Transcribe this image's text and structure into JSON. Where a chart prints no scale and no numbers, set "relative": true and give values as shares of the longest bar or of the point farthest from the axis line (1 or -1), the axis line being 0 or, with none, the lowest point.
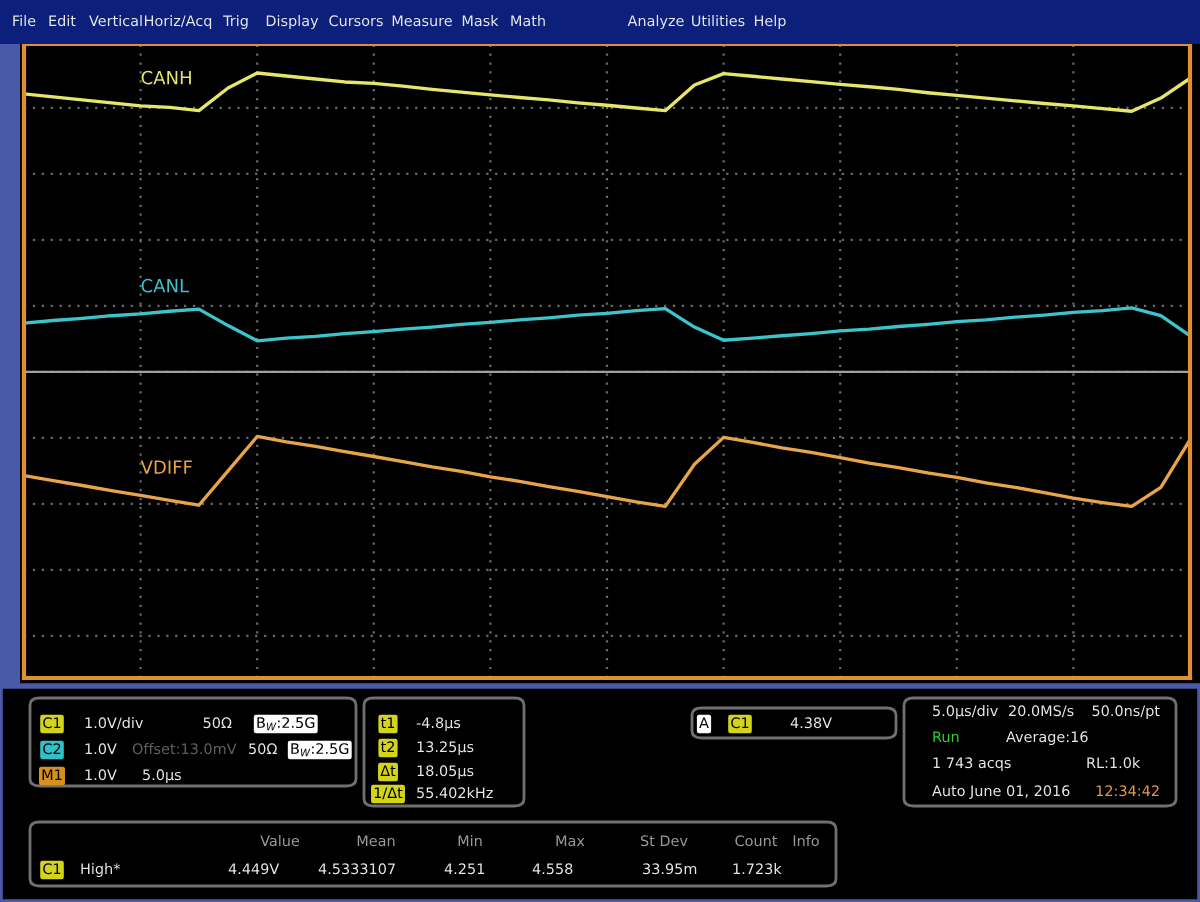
{
  "chart_data": {
    "type": "line",
    "relative": true,
    "grid": true,
    "legend": false,
    "line_style": "solid",
    "marker": "none",
    "categories": [
      null,
      null,
      null,
      null,
      null,
      null,
      null,
      null,
      null,
      null,
      null,
      null,
      null,
      null,
      null,
      null,
      null,
      null,
      null,
      null,
      null,
      null,
      null,
      null,
      null,
      null,
      null,
      null,
      null,
      null,
      null,
      null,
      null,
      null,
      null,
      null,
      null,
      null,
      null,
      null,
      null
    ],
    "series": [
      {
        "name": "CANH",
        "color": "#e6e66a",
        "values": [
          0.93,
          0.92,
          0.91,
          0.9,
          0.89,
          0.885,
          0.874,
          0.95,
          1,
          0.99,
          0.98,
          0.97,
          0.965,
          0.956,
          0.945,
          0.936,
          0.927,
          0.918,
          0.91,
          0.9,
          0.892,
          0.883,
          0.874,
          0.96,
          0.998,
          0.989,
          0.98,
          0.971,
          0.962,
          0.954,
          0.945,
          0.934,
          0.925,
          0.916,
          0.907,
          0.898,
          0.89,
          0.881,
          0.872,
          0.916,
          0.982
        ]
      },
      {
        "name": "CANL",
        "color": "#3cc4cc",
        "values": [
          0.163,
          0.172,
          0.179,
          0.188,
          0.194,
          0.203,
          0.21,
          0.155,
          0.104,
          0.113,
          0.119,
          0.128,
          0.135,
          0.143,
          0.15,
          0.159,
          0.166,
          0.174,
          0.181,
          0.19,
          0.196,
          0.205,
          0.212,
          0.15,
          0.106,
          0.113,
          0.121,
          0.128,
          0.137,
          0.143,
          0.152,
          0.159,
          0.168,
          0.174,
          0.183,
          0.19,
          0.199,
          0.205,
          0.214,
          0.188,
          0.121
        ]
      },
      {
        "name": "VDIFF",
        "color": "#e8a448",
        "values": [
          -0.347,
          -0.364,
          -0.38,
          -0.397,
          -0.413,
          -0.43,
          -0.446,
          -0.331,
          -0.216,
          -0.234,
          -0.249,
          -0.267,
          -0.283,
          -0.3,
          -0.318,
          -0.333,
          -0.351,
          -0.366,
          -0.384,
          -0.4,
          -0.417,
          -0.435,
          -0.45,
          -0.309,
          -0.219,
          -0.236,
          -0.254,
          -0.269,
          -0.287,
          -0.305,
          -0.32,
          -0.338,
          -0.353,
          -0.371,
          -0.386,
          -0.404,
          -0.422,
          -0.437,
          -0.45,
          -0.386,
          -0.227
        ]
      }
    ],
    "annotations": [
      "File",
      "Edit",
      "Vertical",
      "Horiz/Acq",
      "Trig",
      "Display",
      "Cursors",
      "Measure",
      "Mask",
      "Math",
      "Analyze",
      "Utilities",
      "Help",
      "C1",
      "1.0V/div",
      "50Ω",
      "B$_{W}$:2.5G",
      "C2",
      "1.0V",
      "Offset:13.0mV",
      "50Ω",
      "B$_{W}$:2.5G",
      "M1",
      "1.0V",
      "5.0µs",
      "t1",
      "-4.8µs",
      "t2",
      "13.25µs",
      "Δt",
      "18.05µs",
      "1/Δt",
      "55.402kHz",
      "A",
      "C1",
      "4.38V",
      "5.0µs/div",
      "20.0MS/s",
      "50.0ns/pt",
      "Run",
      "Average:16",
      "1 743 acqs",
      "RL:1.0k",
      "Auto",
      "June 01, 2016",
      "12:34:42",
      "Value",
      "Mean",
      "Min",
      "Max",
      "St Dev",
      "Count",
      "Info",
      "C1",
      "High*",
      "4.449V",
      "4.5333107",
      "4.251",
      "4.558",
      "33.95m",
      "1.723k"
    ]
  }
}
